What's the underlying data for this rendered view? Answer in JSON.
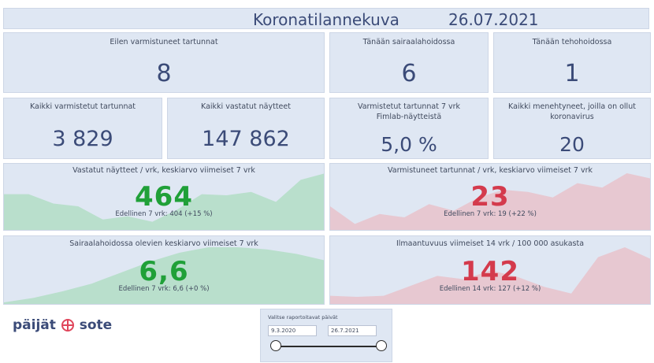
{
  "header": {
    "title": "Koronatilannekuva",
    "date": "26.07.2021"
  },
  "tiles": {
    "yesterday_confirmed": {
      "label": "Eilen varmistuneet tartunnat",
      "value": "8"
    },
    "hospital": {
      "label": "Tänään sairaalahoidossa",
      "value": "6"
    },
    "icu": {
      "label": "Tänään tehohoidossa",
      "value": "1"
    },
    "all_confirmed": {
      "label": "Kaikki varmistetut tartunnat",
      "value": "3 829"
    },
    "all_tests": {
      "label": "Kaikki vastatut näytteet",
      "value": "147 862"
    },
    "positivity": {
      "label": "Varmistetut tartunnat 7 vrk\nFimlab-näytteistä",
      "value": "5,0 %"
    },
    "deaths": {
      "label": "Kaikki menehtyneet, joilla on ollut\nkoronavirus",
      "value": "20"
    }
  },
  "trends": {
    "tests": {
      "label": "Vastatut näytteet / vrk, keskiarvo viimeiset 7 vrk",
      "value": "464",
      "previous": "Edellinen 7 vrk: 404 (+15 %)",
      "color": "#20a038",
      "fill": "#b9dfcc",
      "series": [
        0.62,
        0.62,
        0.45,
        0.4,
        0.16,
        0.22,
        0.12,
        0.34,
        0.62,
        0.6,
        0.66,
        0.48,
        0.88,
        1.0
      ]
    },
    "cases": {
      "label": "Varmistuneet tartunnat / vrk, keskiarvo viimeiset 7 vrk",
      "value": "23",
      "previous": "Edellinen 7 vrk: 19 (+22 %)",
      "color": "#d43a4c",
      "fill": "#e7c8d1",
      "series": [
        0.4,
        0.08,
        0.26,
        0.2,
        0.44,
        0.32,
        0.56,
        0.7,
        0.66,
        0.56,
        0.82,
        0.74,
        1.0,
        0.9
      ]
    },
    "hospital_avg": {
      "label": "Sairaalahoidossa olevien keskiarvo viimeiset 7 vrk",
      "value": "6,6",
      "previous": "Edellinen 7 vrk: 6,6 (+0 %)",
      "color": "#20a038",
      "fill": "#b9dfcc",
      "series": [
        0.0,
        0.08,
        0.2,
        0.34,
        0.54,
        0.74,
        0.9,
        1.0,
        1.0,
        0.96,
        0.88,
        0.76
      ]
    },
    "incidence": {
      "label": "Ilmaantuvuus viimeiset 14 vrk / 100 000 asukasta",
      "value": "142",
      "previous": "Edellinen 14 vrk: 127 (+12 %)",
      "color": "#d43a4c",
      "fill": "#e7c8d1",
      "series": [
        0.12,
        0.1,
        0.12,
        0.3,
        0.48,
        0.42,
        0.58,
        0.46,
        0.28,
        0.16,
        0.82,
        1.0,
        0.78
      ]
    }
  },
  "logo": {
    "part1": "päijät",
    "part2": "sote"
  },
  "slicer": {
    "caption": "Valitse raportoitavat päivät",
    "start": "9.3.2020",
    "end": "26.7.2021"
  }
}
